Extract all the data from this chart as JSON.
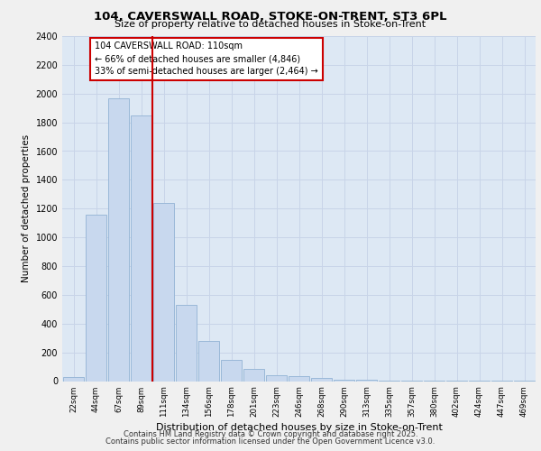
{
  "title1": "104, CAVERSWALL ROAD, STOKE-ON-TRENT, ST3 6PL",
  "title2": "Size of property relative to detached houses in Stoke-on-Trent",
  "xlabel": "Distribution of detached houses by size in Stoke-on-Trent",
  "ylabel": "Number of detached properties",
  "categories": [
    "22sqm",
    "44sqm",
    "67sqm",
    "89sqm",
    "111sqm",
    "134sqm",
    "156sqm",
    "178sqm",
    "201sqm",
    "223sqm",
    "246sqm",
    "268sqm",
    "290sqm",
    "313sqm",
    "335sqm",
    "357sqm",
    "380sqm",
    "402sqm",
    "424sqm",
    "447sqm",
    "469sqm"
  ],
  "values": [
    30,
    1160,
    1970,
    1850,
    1240,
    530,
    280,
    150,
    85,
    40,
    35,
    25,
    8,
    8,
    4,
    3,
    3,
    2,
    2,
    1,
    1
  ],
  "bar_color": "#c8d8ee",
  "bar_edge_color": "#9ab8d8",
  "red_line_x": 4,
  "red_line_label": "104 CAVERSWALL ROAD: 110sqm",
  "annotation_line1": "← 66% of detached houses are smaller (4,846)",
  "annotation_line2": "33% of semi-detached houses are larger (2,464) →",
  "ylim": [
    0,
    2400
  ],
  "yticks": [
    0,
    200,
    400,
    600,
    800,
    1000,
    1200,
    1400,
    1600,
    1800,
    2000,
    2200,
    2400
  ],
  "grid_color": "#c8d4e8",
  "background_color": "#dde8f4",
  "fig_bg_color": "#f0f0f0",
  "footer1": "Contains HM Land Registry data © Crown copyright and database right 2025.",
  "footer2": "Contains public sector information licensed under the Open Government Licence v3.0."
}
